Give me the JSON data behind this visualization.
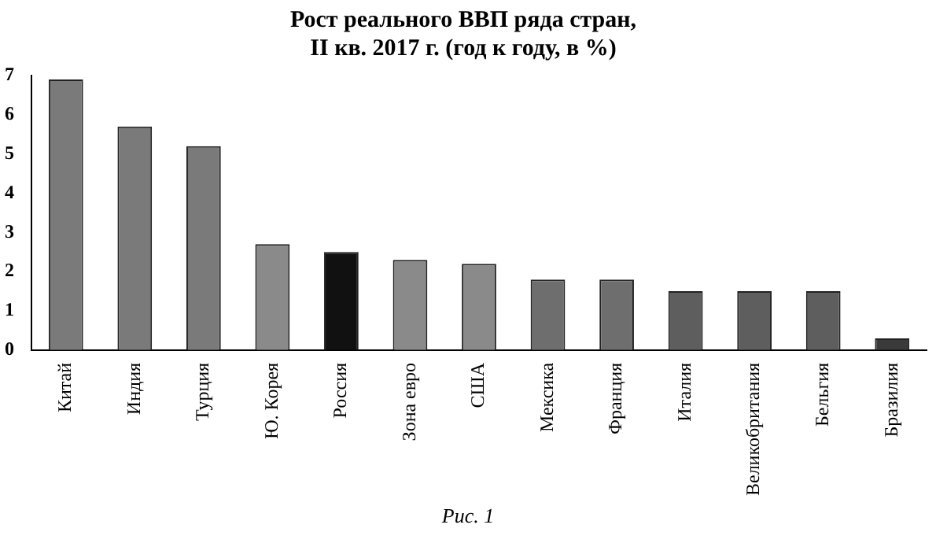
{
  "chart_data": {
    "type": "bar",
    "title": "Рост реального ВВП ряда стран,\nII кв. 2017 г. (год к году, в %)",
    "categories": [
      "Китай",
      "Индия",
      "Турция",
      "Ю. Корея",
      "Россия",
      "Зона евро",
      "США",
      "Мексика",
      "Франция",
      "Италия",
      "Великобритания",
      "Бельгия",
      "Бразилия"
    ],
    "values": [
      6.9,
      5.7,
      5.2,
      2.7,
      2.5,
      2.3,
      2.2,
      1.8,
      1.8,
      1.5,
      1.5,
      1.5,
      0.3
    ],
    "colors": [
      "#7a7a7a",
      "#7a7a7a",
      "#7a7a7a",
      "#8a8a8a",
      "#111111",
      "#8a8a8a",
      "#8a8a8a",
      "#6e6e6e",
      "#6e6e6e",
      "#5e5e5e",
      "#5e5e5e",
      "#5e5e5e",
      "#3a3a3a"
    ],
    "ylim": [
      0,
      7
    ],
    "yticks": [
      0,
      1,
      2,
      3,
      4,
      5,
      6,
      7
    ],
    "grid": false,
    "legend": false,
    "annotations": [
      "Рис. 1"
    ]
  }
}
